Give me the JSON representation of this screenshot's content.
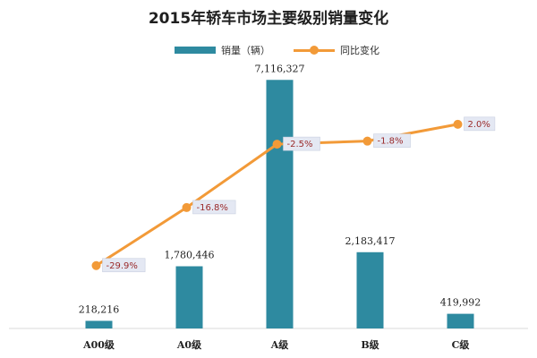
{
  "chart_data": {
    "type": "bar+line",
    "title": "2015年轿车市场主要级别销量变化",
    "categories": [
      "A00级",
      "A0级",
      "A级",
      "B级",
      "C级"
    ],
    "series": [
      {
        "name": "销量（辆）",
        "type": "bar",
        "values": [
          218216,
          1780446,
          7116327,
          2183417,
          419992
        ],
        "labels": [
          "218,216",
          "1,780,446",
          "7,116,327",
          "2,183,417",
          "419,992"
        ],
        "color": "#2e8aa0"
      },
      {
        "name": "同比变化",
        "type": "line",
        "values": [
          -29.9,
          -16.8,
          -2.5,
          -1.8,
          2.0
        ],
        "labels": [
          "-29.9%",
          "-16.8%",
          "-2.5%",
          "-1.8%",
          "2.0%"
        ],
        "color": "#f29a38"
      }
    ],
    "ylim_bar": [
      0,
      7200000
    ],
    "ylim_line": [
      -35,
      5
    ],
    "legend_position": "top-center",
    "grid": false
  }
}
